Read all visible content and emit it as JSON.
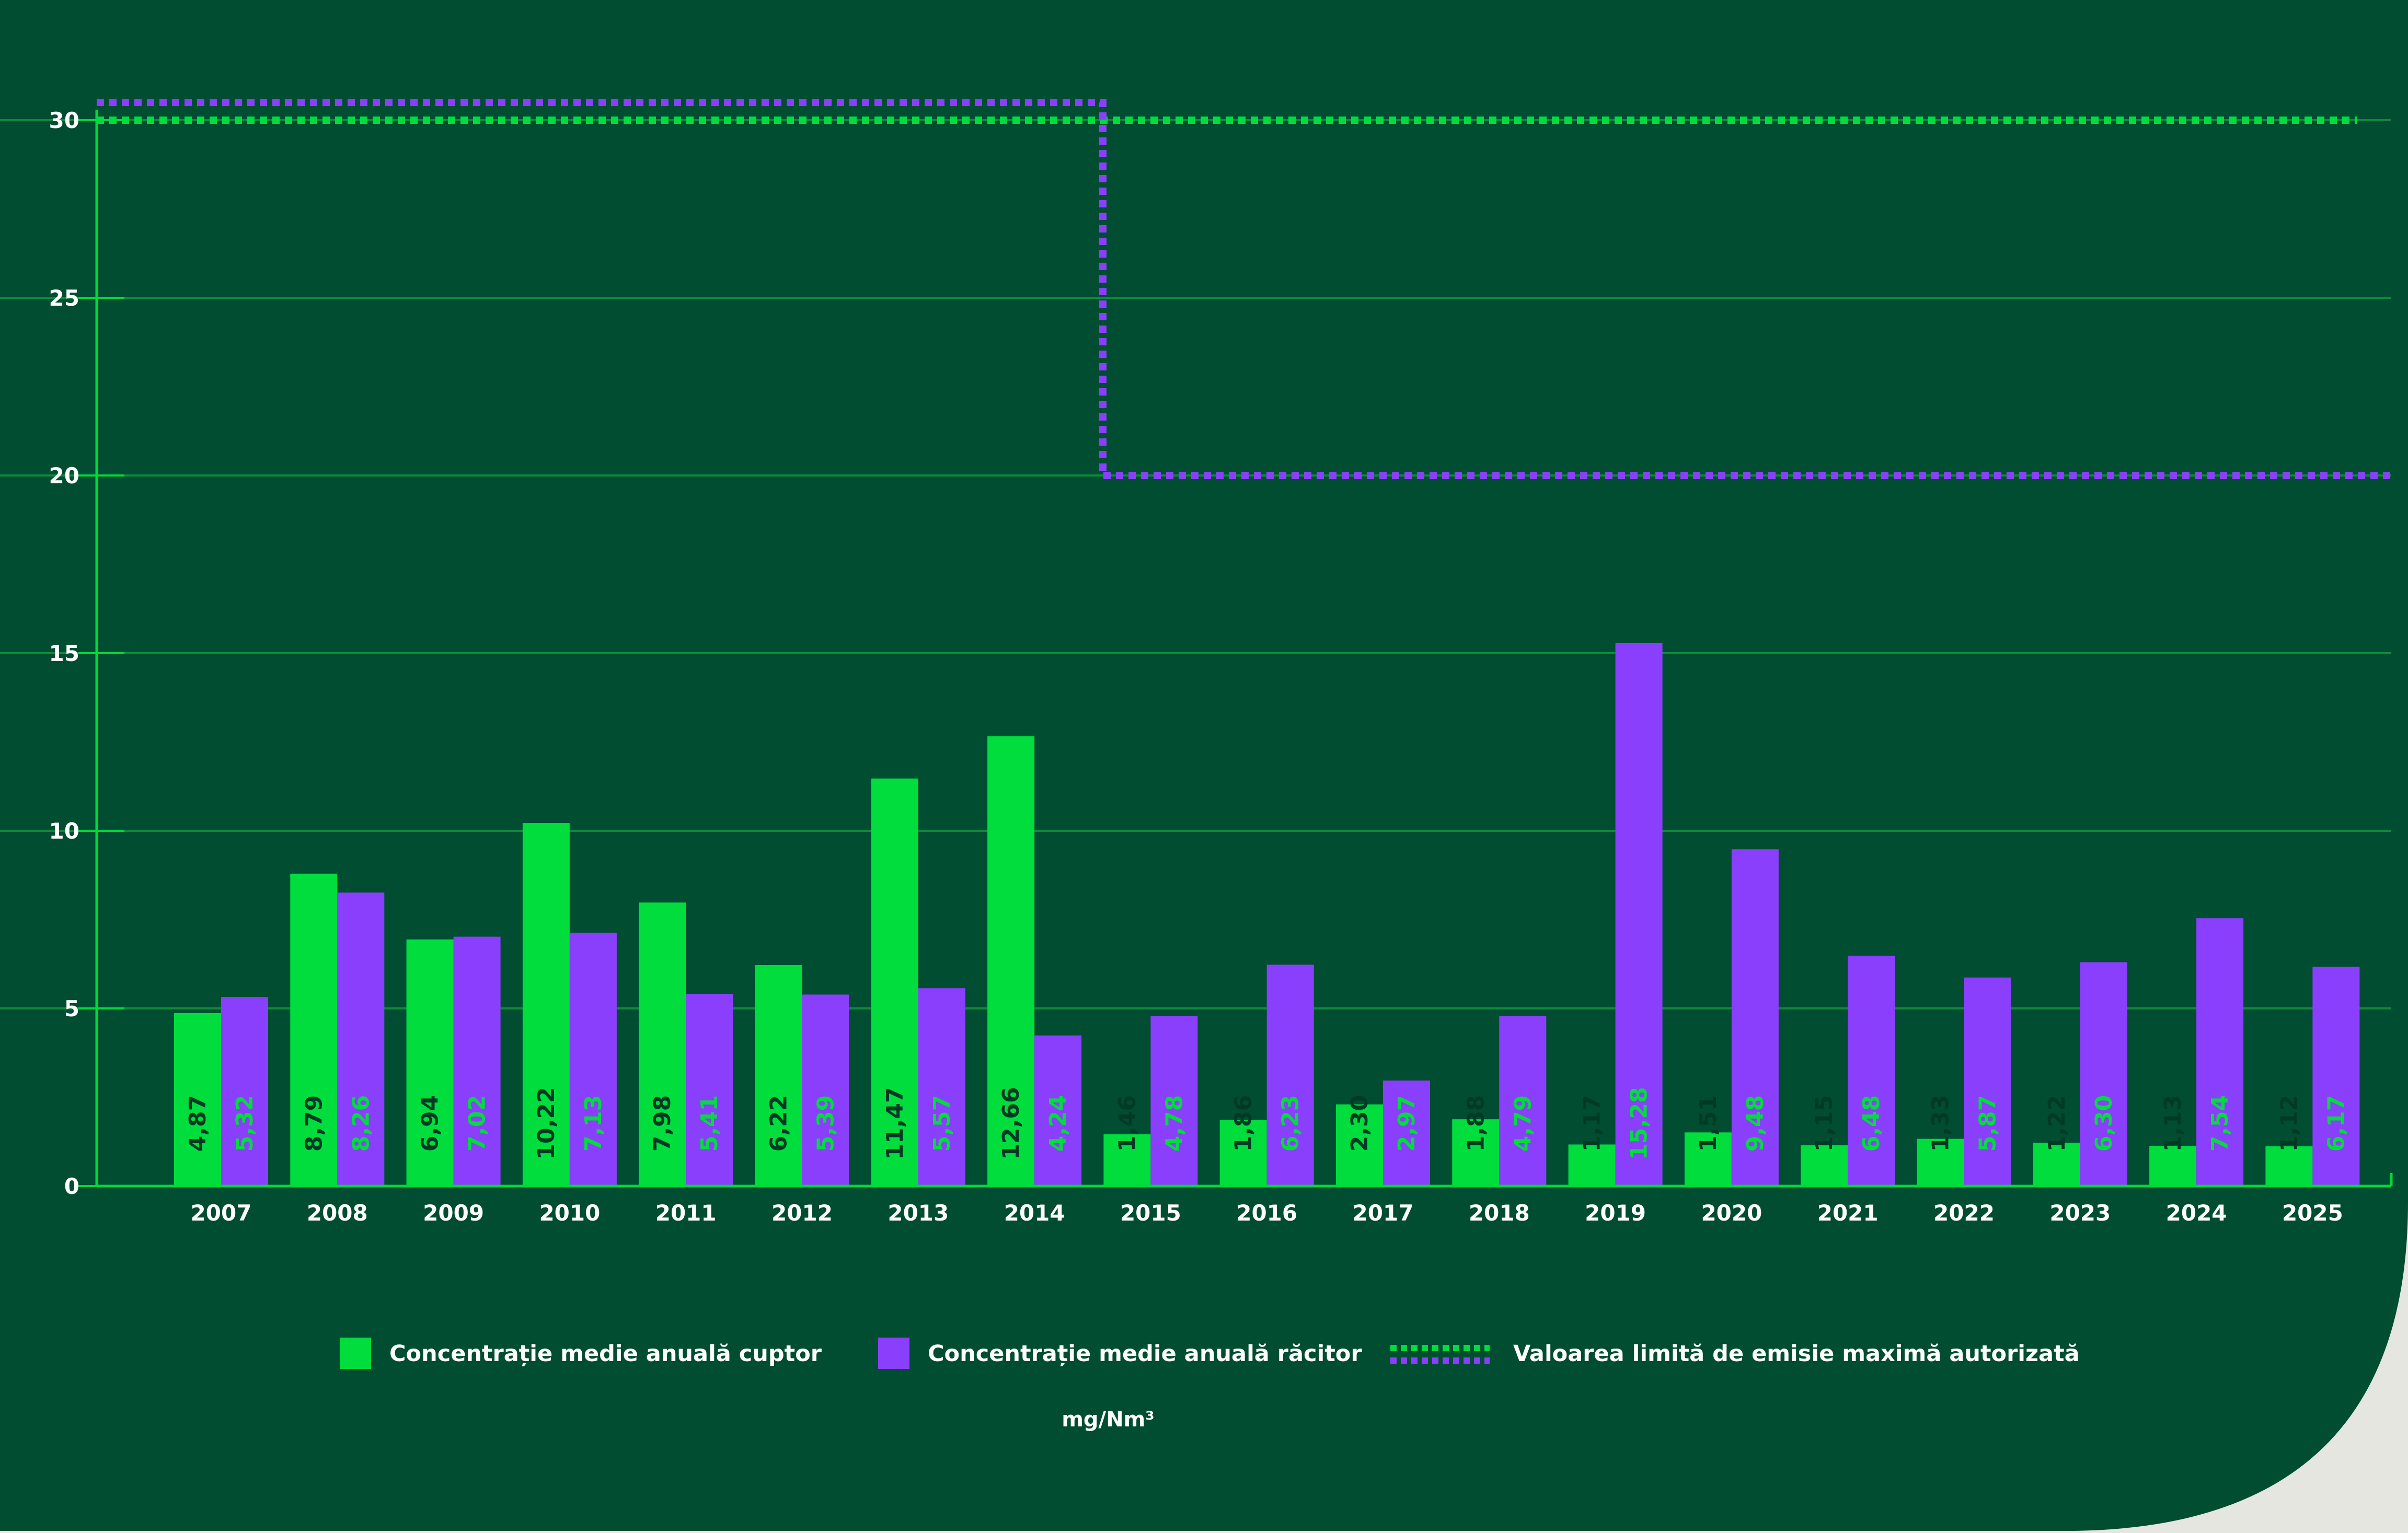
{
  "colors": {
    "background": "#004d31",
    "page_corner": "#e6e6e1",
    "grid": "#0f8a3c",
    "axis": "#00d93c",
    "cuptor": "#00dd3d",
    "racitor": "#8a3ffc",
    "tick_text": "#ffffff",
    "label_on_cuptor": "#003a24",
    "label_on_racitor": "#00dd3d"
  },
  "chart_data": {
    "type": "bar",
    "title": "",
    "xlabel": "",
    "ylabel": "",
    "unit": "mg/Nm³",
    "ylim": [
      0,
      30
    ],
    "yticks": [
      "0",
      "5",
      "10",
      "15",
      "20",
      "25",
      "30"
    ],
    "grid": true,
    "legend_position": "bottom",
    "categories": [
      "2007",
      "2008",
      "2009",
      "2010",
      "2011",
      "2012",
      "2013",
      "2014",
      "2015",
      "2016",
      "2017",
      "2018",
      "2019",
      "2020",
      "2021",
      "2022",
      "2023",
      "2024",
      "2025"
    ],
    "series": [
      {
        "name": "Concentrație medie anuală cuptor",
        "color": "#00dd3d",
        "values": [
          4.87,
          8.79,
          6.94,
          10.22,
          7.98,
          6.22,
          11.47,
          12.66,
          1.46,
          1.86,
          2.3,
          1.88,
          1.17,
          1.51,
          1.15,
          1.33,
          1.22,
          1.13,
          1.12
        ],
        "labels": [
          "4,87",
          "8,79",
          "6,94",
          "10,22",
          "7,98",
          "6,22",
          "11,47",
          "12,66",
          "1,46",
          "1,86",
          "2,30",
          "1,88",
          "1,17",
          "1,51",
          "1,15",
          "1,33",
          "1,22",
          "1,13",
          "1,12"
        ]
      },
      {
        "name": "Concentrație medie anuală răcitor",
        "color": "#8a3ffc",
        "values": [
          5.32,
          8.26,
          7.02,
          7.13,
          5.41,
          5.39,
          5.57,
          4.24,
          4.78,
          6.23,
          2.97,
          4.79,
          15.28,
          9.48,
          6.48,
          5.87,
          6.3,
          7.54,
          6.17
        ],
        "labels": [
          "5,32",
          "8,26",
          "7,02",
          "7,13",
          "5,41",
          "5,39",
          "5,57",
          "4,24",
          "4,78",
          "6,23",
          "2,97",
          "4,79",
          "15,28",
          "9,48",
          "6,48",
          "5,87",
          "6,30",
          "7,54",
          "6,17"
        ]
      }
    ],
    "limit_lines": {
      "name": "Valoarea limită de emisie maximă autorizată",
      "cuptor": {
        "color": "#00dd3d",
        "value": 30
      },
      "racitor": {
        "color": "#8a3ffc",
        "segments": [
          {
            "from": "2007",
            "to": "2014",
            "value": 30.5
          },
          {
            "from": "2015",
            "to": "2025",
            "value": 20
          }
        ]
      }
    }
  },
  "legend": {
    "items": [
      {
        "label": "Concentrație medie anuală cuptor",
        "kind": "bar",
        "color": "#00dd3d"
      },
      {
        "label": "Concentrație medie anuală răcitor",
        "kind": "bar",
        "color": "#8a3ffc"
      },
      {
        "label": "Valoarea limită de emisie maximă autorizată",
        "kind": "dashed-lines"
      }
    ]
  }
}
